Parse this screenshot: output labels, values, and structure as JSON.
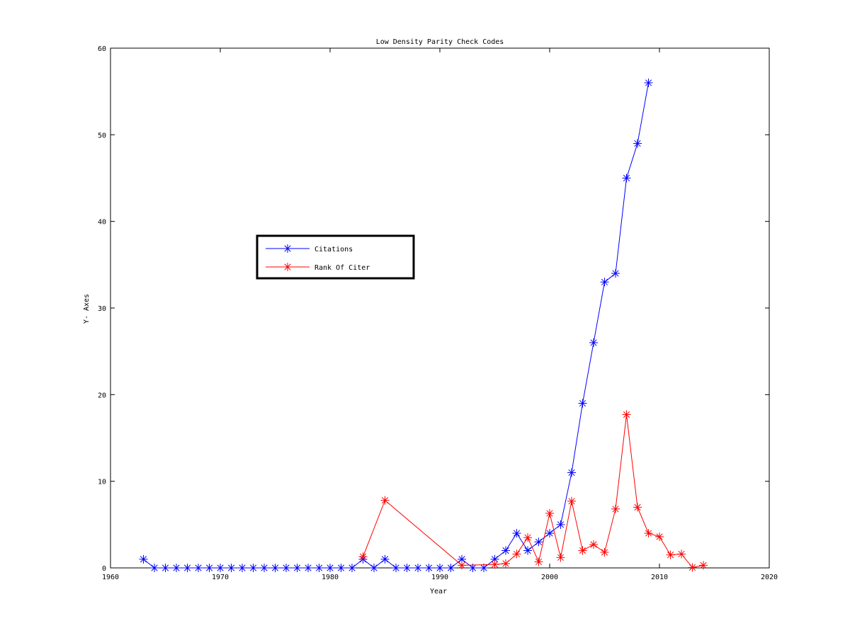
{
  "chart_data": {
    "type": "line",
    "title": "Low Density Parity Check Codes",
    "xlabel": "Year",
    "ylabel": "Y- Axes",
    "xlim": [
      1960,
      2020
    ],
    "ylim": [
      0,
      60
    ],
    "xticks": [
      1960,
      1970,
      1980,
      1990,
      2000,
      2010,
      2020
    ],
    "yticks": [
      0,
      10,
      20,
      30,
      40,
      50,
      60
    ],
    "legend_position": "upper-left-center",
    "grid": false,
    "series": [
      {
        "name": "Citations",
        "color": "#0000ff",
        "marker": "asterisk",
        "x": [
          1963,
          1964,
          1965,
          1966,
          1967,
          1968,
          1969,
          1970,
          1971,
          1972,
          1973,
          1974,
          1975,
          1976,
          1977,
          1978,
          1979,
          1980,
          1981,
          1982,
          1983,
          1984,
          1985,
          1986,
          1987,
          1988,
          1989,
          1990,
          1991,
          1992,
          1993,
          1994,
          1995,
          1996,
          1997,
          1998,
          1999,
          2000,
          2001,
          2002,
          2003,
          2004,
          2005,
          2006,
          2007,
          2008,
          2009
        ],
        "y": [
          1,
          0,
          0,
          0,
          0,
          0,
          0,
          0,
          0,
          0,
          0,
          0,
          0,
          0,
          0,
          0,
          0,
          0,
          0,
          0,
          1,
          0,
          1,
          0,
          0,
          0,
          0,
          0,
          0,
          1,
          0,
          0,
          1,
          2,
          4,
          2,
          3,
          4,
          5,
          11,
          19,
          26,
          33,
          34,
          45,
          49,
          56
        ]
      },
      {
        "name": "Rank Of Citer",
        "color": "#ff0000",
        "marker": "asterisk",
        "x": [
          1983,
          1985,
          1992,
          1995,
          1996,
          1997,
          1998,
          1999,
          2000,
          2001,
          2002,
          2003,
          2004,
          2005,
          2006,
          2007,
          2008,
          2009,
          2010,
          2011,
          2012,
          2013,
          2014
        ],
        "y": [
          1.3,
          7.8,
          0.3,
          0.4,
          0.5,
          1.6,
          3.5,
          0.7,
          6.3,
          1.2,
          7.7,
          2.0,
          2.7,
          1.8,
          6.8,
          17.7,
          7.0,
          4.0,
          3.6,
          1.5,
          1.6,
          0.05,
          0.3
        ]
      }
    ]
  }
}
